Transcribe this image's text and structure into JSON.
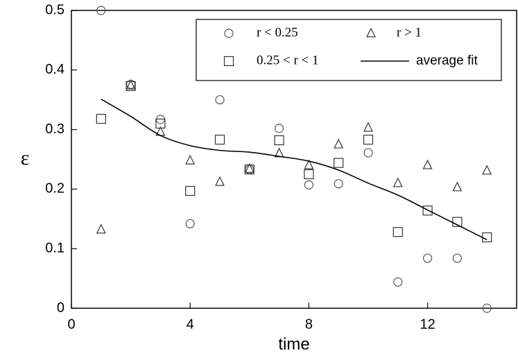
{
  "chart_data": {
    "type": "scatter",
    "xlabel": "time",
    "ylabel": "ε",
    "x": [
      1,
      2,
      3,
      4,
      5,
      6,
      7,
      8,
      9,
      10,
      11,
      12,
      13,
      14
    ],
    "xlim": [
      0,
      15
    ],
    "ylim": [
      0,
      0.5
    ],
    "xticks": [
      0,
      4,
      8,
      12
    ],
    "yticks": [
      0,
      0.1,
      0.2,
      0.3,
      0.4,
      0.5
    ],
    "legend": "top-right",
    "series": [
      {
        "name": "r < 0.25",
        "marker": "circle",
        "color": "#555555",
        "values": [
          0.5,
          0.376,
          0.317,
          0.142,
          0.35,
          0.233,
          0.302,
          0.207,
          0.209,
          0.261,
          0.044,
          0.084,
          0.084,
          0
        ]
      },
      {
        "name": "0.25 < r < 1",
        "marker": "square",
        "color": "#333333",
        "values": [
          0.318,
          0.373,
          0.31,
          0.197,
          0.283,
          0.233,
          0.282,
          0.225,
          0.244,
          0.283,
          0.128,
          0.164,
          0.145,
          0.119
        ]
      },
      {
        "name": "r > 1",
        "marker": "triangle",
        "color": "#333333",
        "values": [
          0.132,
          0.374,
          0.296,
          0.248,
          0.212,
          0.234,
          0.26,
          0.24,
          0.275,
          0.303,
          0.21,
          0.24,
          0.203,
          0.231
        ]
      },
      {
        "name": "average fit",
        "marker": "line",
        "color": "#000000",
        "values": [
          0.351,
          0.322,
          0.29,
          0.273,
          0.265,
          0.262,
          0.255,
          0.247,
          0.232,
          0.21,
          0.19,
          0.165,
          0.14,
          0.115
        ]
      }
    ]
  }
}
